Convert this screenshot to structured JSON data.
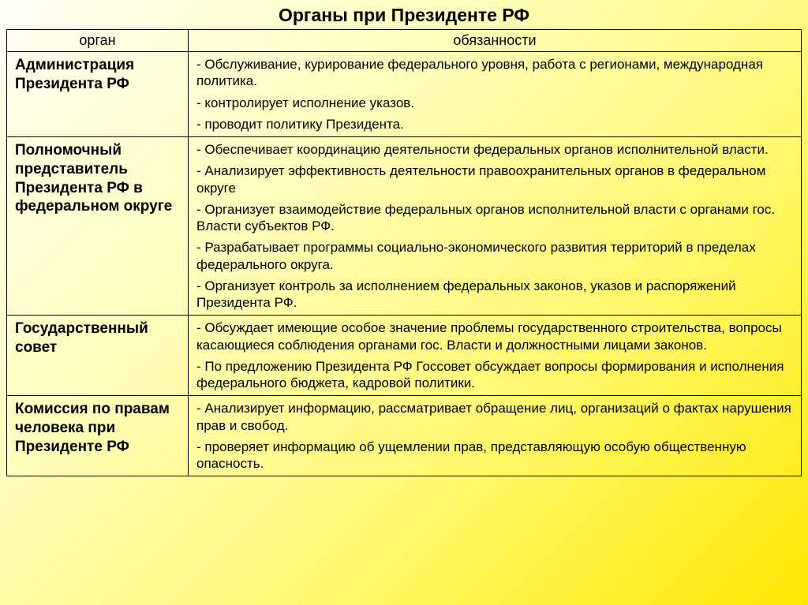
{
  "title": "Органы при Президенте РФ",
  "headers": {
    "col1": "орган",
    "col2": "обязанности"
  },
  "rows": [
    {
      "organ": "Администрация Президента РФ",
      "duties": [
        "- Обслуживание, курирование федерального уровня, работа с регионами, международная политика.",
        "- контролирует исполнение указов.",
        "- проводит политику Президента."
      ]
    },
    {
      "organ": "Полномочный представитель Президента РФ в федеральном округе",
      "duties": [
        "- Обеспечивает координацию деятельности федеральных органов исполнительной власти.",
        "- Анализирует эффективность деятельности правоохранительных органов в федеральном округе",
        "- Организует взаимодействие федеральных органов исполнительной власти с органами гос. Власти субъектов РФ.",
        "- Разрабатывает программы социально-экономического развития территорий в пределах федерального округа.",
        "- Организует контроль за исполнением федеральных законов, указов и распоряжений Президента РФ."
      ]
    },
    {
      "organ": "Государственный совет",
      "duties": [
        "- Обсуждает имеющие особое значение  проблемы государственного строительства, вопросы касающиеся соблюдения органами гос. Власти и должностными лицами законов.",
        "- По предложению Президента РФ Госсовет обсуждает вопросы формирования и исполнения федерального бюджета, кадровой политики."
      ]
    },
    {
      "organ": "Комиссия по правам человека при Президенте РФ",
      "duties": [
        "- Анализирует информацию, рассматривает обращение лиц, организаций о фактах  нарушения прав и свобод.",
        "- проверяет информацию об ущемлении прав, представляющую особую общественную опасность."
      ]
    }
  ]
}
